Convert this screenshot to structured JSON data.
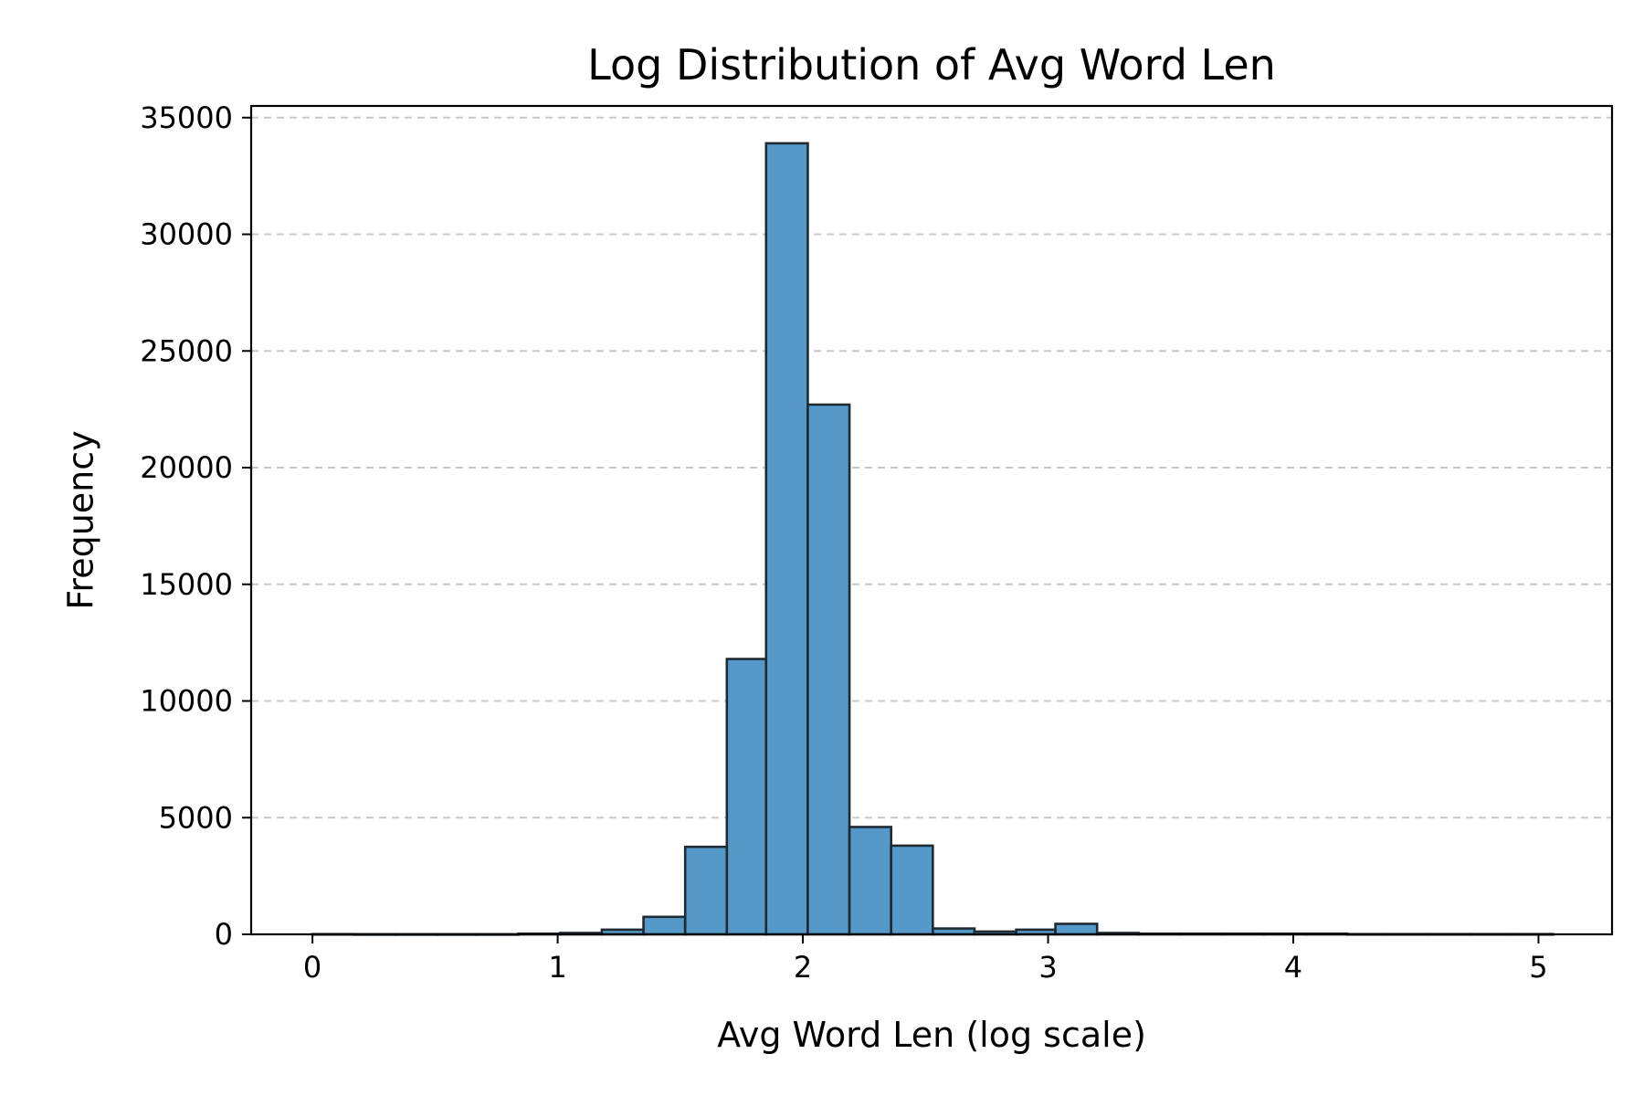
{
  "chart_data": {
    "type": "bar",
    "title": "Log Distribution of Avg Word Len",
    "xlabel": "Avg Word Len (log scale)",
    "ylabel": "Frequency",
    "xlim": [
      -0.25,
      5.3
    ],
    "ylim": [
      0,
      35500
    ],
    "xticks": [
      0,
      1,
      2,
      3,
      4,
      5
    ],
    "yticks": [
      0,
      5000,
      10000,
      15000,
      20000,
      25000,
      30000,
      35000
    ],
    "grid": "y-dashed",
    "bar_color": "#5599c8",
    "edge_color": "#1f2a33",
    "bins": [
      {
        "x0": 0.0,
        "x1": 0.17,
        "value": 10
      },
      {
        "x0": 0.17,
        "x1": 0.34,
        "value": 5
      },
      {
        "x0": 0.34,
        "x1": 0.51,
        "value": 5
      },
      {
        "x0": 0.51,
        "x1": 0.67,
        "value": 5
      },
      {
        "x0": 0.67,
        "x1": 0.84,
        "value": 5
      },
      {
        "x0": 0.84,
        "x1": 1.01,
        "value": 30
      },
      {
        "x0": 1.01,
        "x1": 1.18,
        "value": 60
      },
      {
        "x0": 1.18,
        "x1": 1.35,
        "value": 200
      },
      {
        "x0": 1.35,
        "x1": 1.52,
        "value": 750
      },
      {
        "x0": 1.52,
        "x1": 1.69,
        "value": 3750
      },
      {
        "x0": 1.69,
        "x1": 1.85,
        "value": 11800
      },
      {
        "x0": 1.85,
        "x1": 2.02,
        "value": 33900
      },
      {
        "x0": 2.02,
        "x1": 2.19,
        "value": 22700
      },
      {
        "x0": 2.19,
        "x1": 2.36,
        "value": 4600
      },
      {
        "x0": 2.36,
        "x1": 2.53,
        "value": 3800
      },
      {
        "x0": 2.53,
        "x1": 2.7,
        "value": 250
      },
      {
        "x0": 2.7,
        "x1": 2.87,
        "value": 120
      },
      {
        "x0": 2.87,
        "x1": 3.03,
        "value": 200
      },
      {
        "x0": 3.03,
        "x1": 3.2,
        "value": 450
      },
      {
        "x0": 3.2,
        "x1": 3.37,
        "value": 60
      },
      {
        "x0": 3.37,
        "x1": 3.54,
        "value": 30
      },
      {
        "x0": 3.54,
        "x1": 3.71,
        "value": 30
      },
      {
        "x0": 3.71,
        "x1": 3.88,
        "value": 30
      },
      {
        "x0": 3.88,
        "x1": 4.05,
        "value": 30
      },
      {
        "x0": 4.05,
        "x1": 4.22,
        "value": 30
      },
      {
        "x0": 4.22,
        "x1": 4.38,
        "value": 10
      },
      {
        "x0": 4.38,
        "x1": 4.55,
        "value": 10
      },
      {
        "x0": 4.55,
        "x1": 4.72,
        "value": 10
      },
      {
        "x0": 4.72,
        "x1": 4.89,
        "value": 10
      },
      {
        "x0": 4.89,
        "x1": 5.06,
        "value": 10
      }
    ]
  }
}
